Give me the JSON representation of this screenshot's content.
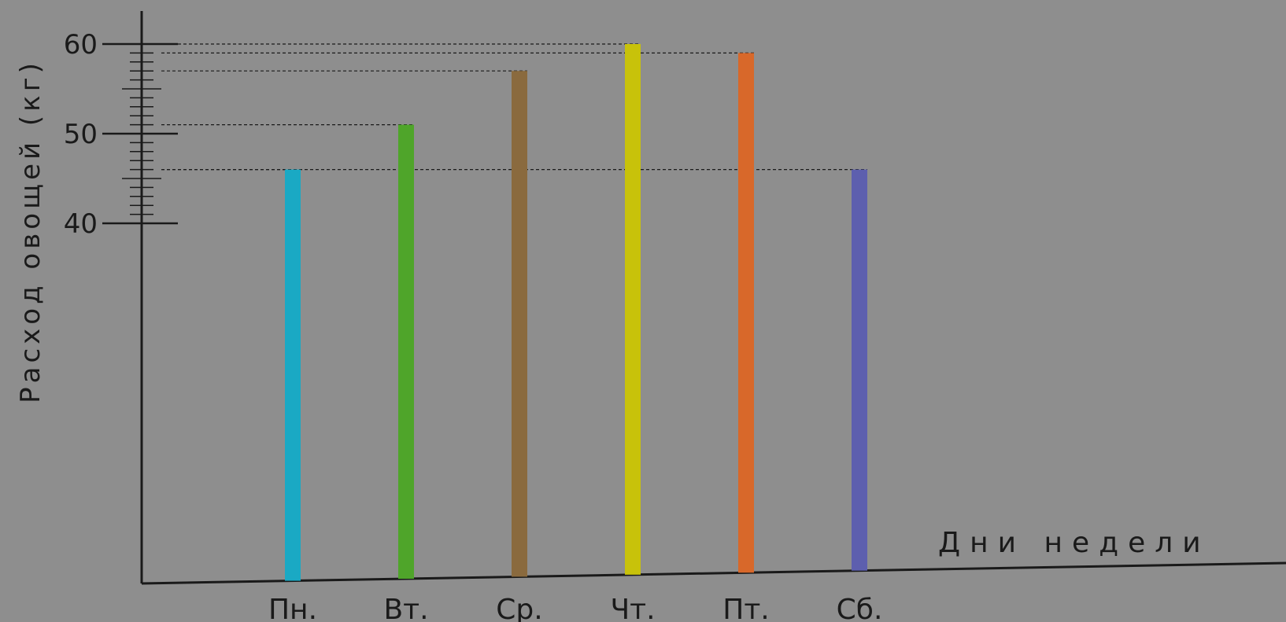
{
  "chart_data": {
    "type": "bar",
    "categories": [
      "Пн.",
      "Вт.",
      "Ср.",
      "Чт.",
      "Пт.",
      "Сб."
    ],
    "values": [
      46,
      51,
      57,
      60,
      59,
      46
    ],
    "xlabel": "Дни недели",
    "ylabel": "Расход овощей (кг)",
    "yticks": [
      40,
      50,
      60
    ],
    "ylim": [
      0,
      60
    ],
    "axis_break": "between 0 and 40",
    "colors": [
      "#1aa9c4",
      "#4fa52a",
      "#8a6a3e",
      "#c8c20a",
      "#d8682a",
      "#5d5fae"
    ],
    "grid": false,
    "guide_lines": "dashed lines from the top of each bar to the y-axis"
  }
}
